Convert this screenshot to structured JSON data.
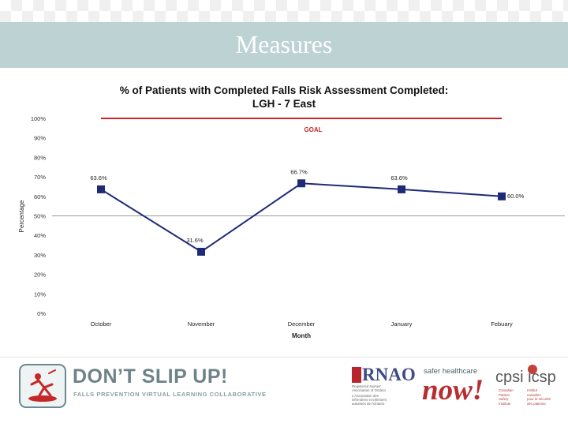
{
  "slide": {
    "title": "Measures"
  },
  "chart_data": {
    "type": "line",
    "title_line1": "% of Patients with Completed Falls Risk Assessment Completed:",
    "title_line2": "LGH - 7 East",
    "xlabel": "Month",
    "ylabel": "Percentage",
    "categories": [
      "October",
      "November",
      "December",
      "January",
      "Febuary"
    ],
    "series": [
      {
        "name": "LGH - 7 East",
        "values": [
          63.6,
          31.6,
          66.7,
          63.6,
          60.0
        ],
        "labels": [
          "63.6%",
          "31.6%",
          "66.7%",
          "63.6%",
          "60.0%"
        ],
        "color": "#1e2a78"
      }
    ],
    "goal": {
      "label": "GOAL",
      "value": 100,
      "color": "#c62828"
    },
    "yticks": [
      "0%",
      "10%",
      "20%",
      "30%",
      "40%",
      "50%",
      "60%",
      "70%",
      "80%",
      "90%",
      "100%"
    ],
    "ylim": [
      0,
      100
    ],
    "reference_line": 50
  },
  "footer": {
    "slogan": "DON’T SLIP UP!",
    "subslogan": "FALLS PREVENTION VIRTUAL LEARNING COLLABORATIVE",
    "rnao": {
      "name": "RNAO",
      "en_lines": [
        "Registered Nurses'",
        "Association of Ontario"
      ],
      "fr_lines": [
        "L'Association des",
        "infirmières et infirmiers",
        "autorisés de l'Ontario"
      ]
    },
    "shn": {
      "top": "safer healthcare",
      "now": "now!"
    },
    "cpsi": {
      "name": "cpsi icsp",
      "en_lines": [
        "Canadian",
        "Patient",
        "Safety",
        "Institute"
      ],
      "fr_lines": [
        "Institut",
        "canadien",
        "pour la sécurité",
        "des patients"
      ]
    },
    "colors": {
      "slogan": "#6e8288",
      "rnao": "#3f4a86",
      "now": "#b72e30",
      "cpsi": "#c8403b"
    }
  }
}
